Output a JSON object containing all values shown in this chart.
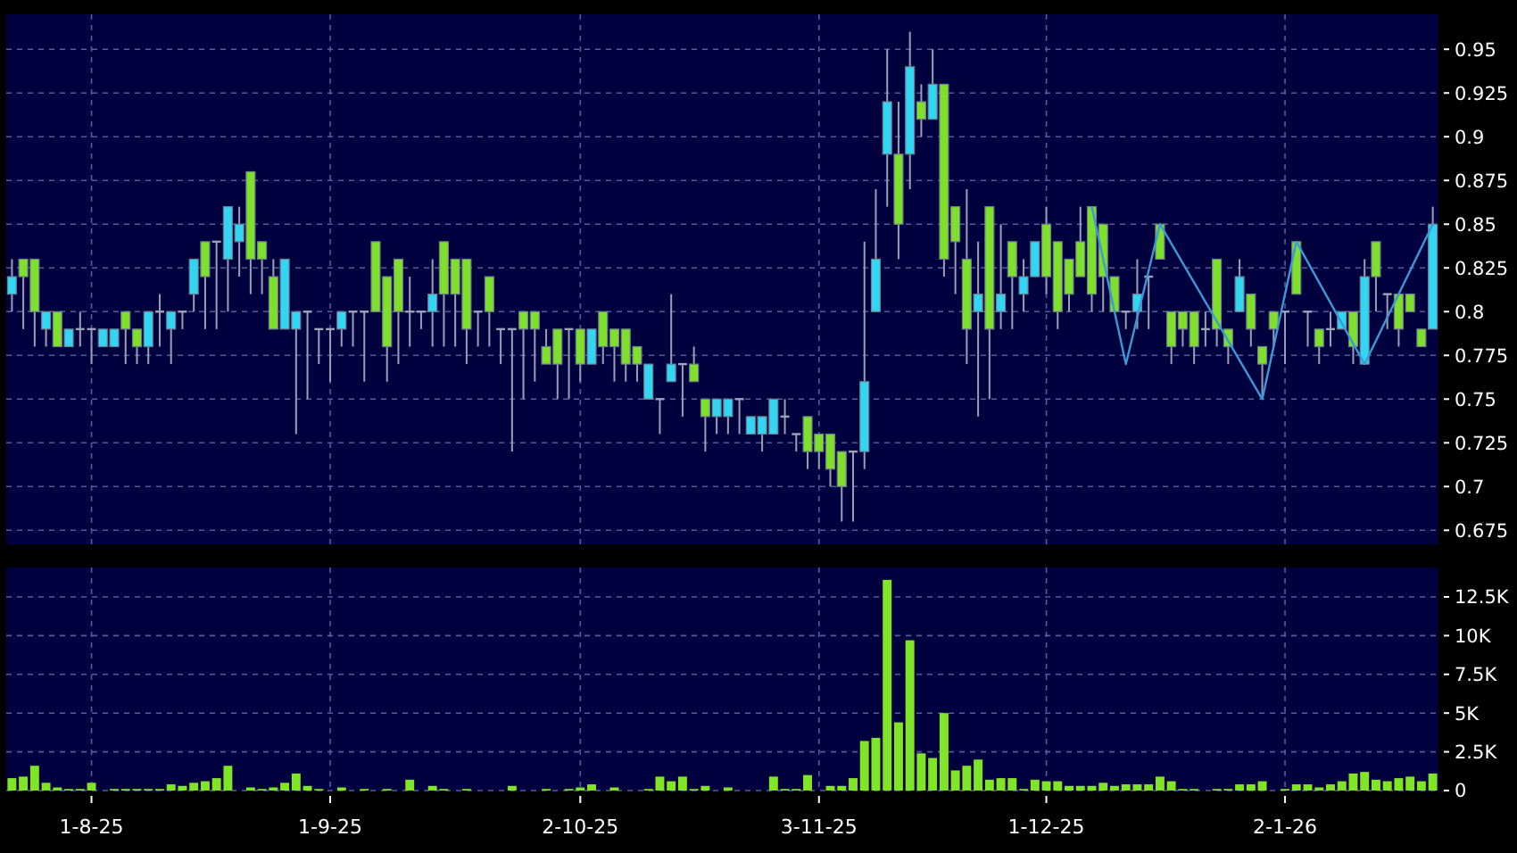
{
  "chart_data": [
    {
      "type": "candlestick",
      "tick_labels": "y",
      "grid": true,
      "categories": [
        null,
        null,
        null,
        null,
        null,
        null,
        null,
        null,
        null,
        null,
        null,
        null,
        null,
        null,
        null,
        null,
        null,
        null,
        null,
        null,
        null,
        null,
        null,
        null,
        null,
        null,
        null,
        null,
        null,
        null,
        null,
        null,
        null,
        null,
        null,
        null,
        null,
        null,
        null,
        null,
        null,
        null,
        null,
        null,
        null,
        null,
        null,
        null,
        null,
        null,
        null,
        null,
        null,
        null,
        null,
        null,
        null,
        null,
        null,
        null,
        null,
        null,
        null,
        null,
        null,
        null,
        null,
        null,
        null,
        null,
        null,
        null,
        null,
        null,
        null,
        null,
        null,
        null,
        null,
        null,
        null,
        null,
        null,
        null,
        null,
        null,
        null,
        null,
        null,
        null,
        null,
        null,
        null,
        null,
        null,
        null,
        null,
        null,
        null,
        null,
        null,
        null,
        null,
        null,
        null,
        null,
        null,
        null,
        null,
        null,
        null,
        null,
        null,
        null,
        null,
        null,
        null,
        null,
        null,
        null,
        null,
        null,
        null,
        null,
        null,
        null
      ],
      "ylim": [
        0.667,
        0.97
      ],
      "yticks": [
        0.675,
        0.7,
        0.725,
        0.75,
        0.775,
        0.8,
        0.825,
        0.85,
        0.875,
        0.9,
        0.925,
        0.95
      ],
      "ohlc": [
        [
          0.81,
          0.83,
          0.8,
          0.82
        ],
        [
          0.83,
          0.83,
          0.79,
          0.82
        ],
        [
          0.83,
          0.83,
          0.78,
          0.8
        ],
        [
          0.79,
          0.8,
          0.78,
          0.8
        ],
        [
          0.8,
          0.8,
          0.78,
          0.78
        ],
        [
          0.78,
          0.79,
          0.78,
          0.79
        ],
        [
          0.79,
          0.8,
          0.78,
          0.79
        ],
        [
          0.79,
          0.79,
          0.77,
          0.79
        ],
        [
          0.78,
          0.79,
          0.78,
          0.79
        ],
        [
          0.78,
          0.79,
          0.78,
          0.79
        ],
        [
          0.8,
          0.8,
          0.77,
          0.79
        ],
        [
          0.79,
          0.79,
          0.77,
          0.78
        ],
        [
          0.78,
          0.8,
          0.77,
          0.8
        ],
        [
          0.8,
          0.81,
          0.78,
          0.8
        ],
        [
          0.79,
          0.8,
          0.77,
          0.8
        ],
        [
          0.8,
          0.8,
          0.79,
          0.8
        ],
        [
          0.81,
          0.83,
          0.8,
          0.83
        ],
        [
          0.84,
          0.84,
          0.79,
          0.82
        ],
        [
          0.84,
          0.84,
          0.79,
          0.84
        ],
        [
          0.83,
          0.86,
          0.8,
          0.86
        ],
        [
          0.84,
          0.86,
          0.82,
          0.85
        ],
        [
          0.88,
          0.88,
          0.81,
          0.83
        ],
        [
          0.84,
          0.84,
          0.81,
          0.83
        ],
        [
          0.82,
          0.83,
          0.79,
          0.79
        ],
        [
          0.79,
          0.83,
          0.79,
          0.83
        ],
        [
          0.79,
          0.8,
          0.73,
          0.8
        ],
        [
          0.8,
          0.8,
          0.75,
          0.8
        ],
        [
          0.79,
          0.79,
          0.77,
          0.79
        ],
        [
          0.79,
          0.79,
          0.76,
          0.79
        ],
        [
          0.79,
          0.8,
          0.78,
          0.8
        ],
        [
          0.8,
          0.8,
          0.78,
          0.8
        ],
        [
          0.8,
          0.8,
          0.76,
          0.8
        ],
        [
          0.84,
          0.84,
          0.8,
          0.8
        ],
        [
          0.82,
          0.82,
          0.76,
          0.78
        ],
        [
          0.83,
          0.83,
          0.77,
          0.8
        ],
        [
          0.8,
          0.82,
          0.78,
          0.8
        ],
        [
          0.8,
          0.8,
          0.79,
          0.8
        ],
        [
          0.8,
          0.83,
          0.78,
          0.81
        ],
        [
          0.84,
          0.84,
          0.78,
          0.81
        ],
        [
          0.83,
          0.83,
          0.78,
          0.81
        ],
        [
          0.83,
          0.83,
          0.77,
          0.79
        ],
        [
          0.8,
          0.8,
          0.78,
          0.8
        ],
        [
          0.82,
          0.82,
          0.78,
          0.8
        ],
        [
          0.79,
          0.79,
          0.77,
          0.79
        ],
        [
          0.79,
          0.79,
          0.72,
          0.79
        ],
        [
          0.8,
          0.8,
          0.75,
          0.79
        ],
        [
          0.8,
          0.8,
          0.76,
          0.79
        ],
        [
          0.78,
          0.79,
          0.77,
          0.77
        ],
        [
          0.79,
          0.79,
          0.75,
          0.77
        ],
        [
          0.79,
          0.79,
          0.75,
          0.79
        ],
        [
          0.79,
          0.79,
          0.76,
          0.77
        ],
        [
          0.77,
          0.79,
          0.77,
          0.79
        ],
        [
          0.8,
          0.8,
          0.77,
          0.78
        ],
        [
          0.79,
          0.79,
          0.76,
          0.78
        ],
        [
          0.79,
          0.79,
          0.76,
          0.77
        ],
        [
          0.78,
          0.78,
          0.76,
          0.77
        ],
        [
          0.75,
          0.77,
          0.75,
          0.77
        ],
        [
          0.75,
          0.75,
          0.73,
          0.75
        ],
        [
          0.76,
          0.81,
          0.76,
          0.77
        ],
        [
          0.77,
          0.77,
          0.74,
          0.77
        ],
        [
          0.77,
          0.78,
          0.76,
          0.76
        ],
        [
          0.75,
          0.75,
          0.72,
          0.74
        ],
        [
          0.74,
          0.75,
          0.73,
          0.75
        ],
        [
          0.74,
          0.75,
          0.73,
          0.75
        ],
        [
          0.75,
          0.75,
          0.73,
          0.75
        ],
        [
          0.73,
          0.74,
          0.73,
          0.74
        ],
        [
          0.73,
          0.74,
          0.72,
          0.74
        ],
        [
          0.73,
          0.75,
          0.73,
          0.75
        ],
        [
          0.74,
          0.75,
          0.73,
          0.74
        ],
        [
          0.73,
          0.73,
          0.72,
          0.73
        ],
        [
          0.74,
          0.74,
          0.71,
          0.72
        ],
        [
          0.73,
          0.73,
          0.71,
          0.72
        ],
        [
          0.73,
          0.73,
          0.7,
          0.71
        ],
        [
          0.72,
          0.72,
          0.68,
          0.7
        ],
        [
          0.72,
          0.72,
          0.68,
          0.72
        ],
        [
          0.72,
          0.84,
          0.71,
          0.76
        ],
        [
          0.8,
          0.87,
          0.8,
          0.83
        ],
        [
          0.89,
          0.95,
          0.86,
          0.92
        ],
        [
          0.89,
          0.92,
          0.83,
          0.85
        ],
        [
          0.89,
          0.96,
          0.87,
          0.94
        ],
        [
          0.92,
          0.93,
          0.9,
          0.91
        ],
        [
          0.91,
          0.95,
          0.91,
          0.93
        ],
        [
          0.93,
          0.93,
          0.82,
          0.83
        ],
        [
          0.86,
          0.86,
          0.81,
          0.84
        ],
        [
          0.83,
          0.87,
          0.77,
          0.79
        ],
        [
          0.8,
          0.84,
          0.74,
          0.81
        ],
        [
          0.86,
          0.86,
          0.75,
          0.79
        ],
        [
          0.8,
          0.85,
          0.79,
          0.81
        ],
        [
          0.84,
          0.84,
          0.79,
          0.82
        ],
        [
          0.81,
          0.83,
          0.8,
          0.82
        ],
        [
          0.82,
          0.84,
          0.82,
          0.84
        ],
        [
          0.85,
          0.86,
          0.81,
          0.82
        ],
        [
          0.84,
          0.84,
          0.79,
          0.8
        ],
        [
          0.83,
          0.83,
          0.8,
          0.81
        ],
        [
          0.84,
          0.86,
          0.82,
          0.82
        ],
        [
          0.86,
          0.86,
          0.8,
          0.81
        ],
        [
          0.85,
          0.85,
          0.8,
          0.82
        ],
        [
          0.82,
          0.82,
          0.8,
          0.8
        ],
        [
          0.8,
          0.8,
          0.79,
          0.8
        ],
        [
          0.8,
          0.83,
          0.79,
          0.81
        ],
        [
          0.82,
          0.82,
          0.79,
          0.82
        ],
        [
          0.85,
          0.85,
          0.83,
          0.83
        ],
        [
          0.8,
          0.8,
          0.77,
          0.78
        ],
        [
          0.8,
          0.8,
          0.78,
          0.79
        ],
        [
          0.8,
          0.8,
          0.77,
          0.78
        ],
        [
          0.79,
          0.8,
          0.78,
          0.79
        ],
        [
          0.83,
          0.83,
          0.78,
          0.79
        ],
        [
          0.79,
          0.79,
          0.77,
          0.78
        ],
        [
          0.8,
          0.83,
          0.8,
          0.82
        ],
        [
          0.81,
          0.81,
          0.78,
          0.79
        ],
        [
          0.78,
          0.78,
          0.75,
          0.77
        ],
        [
          0.8,
          0.8,
          0.78,
          0.79
        ],
        [
          0.8,
          0.8,
          0.77,
          0.8
        ],
        [
          0.84,
          0.84,
          0.81,
          0.81
        ],
        [
          0.8,
          0.8,
          0.78,
          0.8
        ],
        [
          0.79,
          0.79,
          0.77,
          0.78
        ],
        [
          0.79,
          0.8,
          0.78,
          0.79
        ],
        [
          0.79,
          0.8,
          0.79,
          0.8
        ],
        [
          0.8,
          0.8,
          0.77,
          0.78
        ],
        [
          0.77,
          0.83,
          0.77,
          0.82
        ],
        [
          0.84,
          0.84,
          0.8,
          0.82
        ],
        [
          0.81,
          0.81,
          0.79,
          0.81
        ],
        [
          0.81,
          0.81,
          0.78,
          0.79
        ],
        [
          0.81,
          0.81,
          0.8,
          0.8
        ],
        [
          0.79,
          0.79,
          0.78,
          0.78
        ],
        [
          0.79,
          0.86,
          0.79,
          0.85
        ]
      ],
      "colors": [
        "#33d6f2",
        "#7ee02a",
        "#7ee02a",
        "#33d6f2",
        "#7ee02a",
        "#33d6f2",
        "#9da3b8",
        "#9da3b8",
        "#33d6f2",
        "#33d6f2",
        "#7ee02a",
        "#7ee02a",
        "#33d6f2",
        "#9da3b8",
        "#33d6f2",
        "#9da3b8",
        "#33d6f2",
        "#7ee02a",
        "#9da3b8",
        "#33d6f2",
        "#33d6f2",
        "#7ee02a",
        "#7ee02a",
        "#7ee02a",
        "#33d6f2",
        "#33d6f2",
        "#9da3b8",
        "#9da3b8",
        "#9da3b8",
        "#33d6f2",
        "#9da3b8",
        "#9da3b8",
        "#7ee02a",
        "#7ee02a",
        "#7ee02a",
        "#9da3b8",
        "#9da3b8",
        "#33d6f2",
        "#7ee02a",
        "#7ee02a",
        "#7ee02a",
        "#9da3b8",
        "#7ee02a",
        "#9da3b8",
        "#9da3b8",
        "#7ee02a",
        "#7ee02a",
        "#7ee02a",
        "#7ee02a",
        "#9da3b8",
        "#7ee02a",
        "#33d6f2",
        "#7ee02a",
        "#7ee02a",
        "#7ee02a",
        "#7ee02a",
        "#33d6f2",
        "#9da3b8",
        "#33d6f2",
        "#9da3b8",
        "#7ee02a",
        "#7ee02a",
        "#33d6f2",
        "#33d6f2",
        "#9da3b8",
        "#33d6f2",
        "#33d6f2",
        "#33d6f2",
        "#9da3b8",
        "#9da3b8",
        "#7ee02a",
        "#7ee02a",
        "#7ee02a",
        "#7ee02a",
        "#9da3b8",
        "#33d6f2",
        "#33d6f2",
        "#33d6f2",
        "#7ee02a",
        "#33d6f2",
        "#7ee02a",
        "#33d6f2",
        "#7ee02a",
        "#7ee02a",
        "#7ee02a",
        "#33d6f2",
        "#7ee02a",
        "#33d6f2",
        "#7ee02a",
        "#33d6f2",
        "#33d6f2",
        "#7ee02a",
        "#7ee02a",
        "#7ee02a",
        "#7ee02a",
        "#7ee02a",
        "#7ee02a",
        "#7ee02a",
        "#9da3b8",
        "#33d6f2",
        "#9da3b8",
        "#7ee02a",
        "#7ee02a",
        "#7ee02a",
        "#7ee02a",
        "#9da3b8",
        "#7ee02a",
        "#7ee02a",
        "#33d6f2",
        "#7ee02a",
        "#7ee02a",
        "#7ee02a",
        "#9da3b8",
        "#7ee02a",
        "#9da3b8",
        "#7ee02a",
        "#9da3b8",
        "#33d6f2",
        "#7ee02a",
        "#33d6f2",
        "#7ee02a",
        "#9da3b8",
        "#7ee02a",
        "#7ee02a",
        "#7ee02a",
        "#33d6f2"
      ],
      "series": [
        {
          "type": "line",
          "color": "#3a9ad9",
          "values": [
            null,
            null,
            null,
            null,
            null,
            null,
            null,
            null,
            null,
            null,
            null,
            null,
            null,
            null,
            null,
            null,
            null,
            null,
            null,
            null,
            null,
            null,
            null,
            null,
            null,
            null,
            null,
            null,
            null,
            null,
            null,
            null,
            null,
            null,
            null,
            null,
            null,
            null,
            null,
            null,
            null,
            null,
            null,
            null,
            null,
            null,
            null,
            null,
            null,
            null,
            null,
            null,
            null,
            null,
            null,
            null,
            null,
            null,
            null,
            null,
            null,
            null,
            null,
            null,
            null,
            null,
            null,
            null,
            null,
            null,
            null,
            null,
            null,
            null,
            null,
            null,
            null,
            null,
            null,
            null,
            null,
            null,
            null,
            null,
            null,
            null,
            null,
            null,
            null,
            null,
            null,
            null,
            null,
            null,
            null,
            0.86,
            null,
            null,
            0.77,
            null,
            null,
            0.85,
            null,
            null,
            null,
            null,
            null,
            null,
            null,
            null,
            0.75,
            null,
            null,
            0.84,
            null,
            null,
            null,
            null,
            null,
            0.77,
            null,
            null,
            null,
            null,
            null,
            0.85
          ]
        }
      ]
    },
    {
      "type": "bar",
      "grid": true,
      "color": "#80e526",
      "categories": [
        null,
        null,
        null,
        null,
        null,
        null,
        null,
        "1-8-25",
        null,
        null,
        null,
        null,
        null,
        null,
        null,
        null,
        null,
        null,
        null,
        null,
        null,
        null,
        null,
        null,
        null,
        null,
        null,
        null,
        "1-9-25",
        null,
        null,
        null,
        null,
        null,
        null,
        null,
        null,
        null,
        null,
        null,
        null,
        null,
        null,
        null,
        null,
        null,
        null,
        null,
        null,
        null,
        "2-10-25",
        null,
        null,
        null,
        null,
        null,
        null,
        null,
        null,
        null,
        null,
        null,
        null,
        null,
        null,
        null,
        null,
        null,
        null,
        null,
        null,
        "3-11-25",
        null,
        null,
        null,
        null,
        null,
        null,
        null,
        null,
        null,
        null,
        null,
        null,
        null,
        null,
        null,
        null,
        null,
        null,
        null,
        "1-12-25",
        null,
        null,
        null,
        null,
        null,
        null,
        null,
        null,
        null,
        null,
        null,
        null,
        null,
        null,
        null,
        null,
        null,
        null,
        null,
        null,
        "2-1-26",
        null,
        null,
        null,
        null,
        null,
        null,
        null,
        null,
        null,
        null,
        null,
        null,
        null
      ],
      "ylim": [
        0,
        14400
      ],
      "yticks": [
        0,
        {
          "value": 2500,
          "label": "2.5K"
        },
        {
          "value": 5000,
          "label": "5K"
        },
        {
          "value": 7500,
          "label": "7.5K"
        },
        {
          "value": 10000,
          "label": "10K"
        },
        {
          "value": 12500,
          "label": "12.5K"
        }
      ],
      "values": [
        800,
        900,
        1600,
        500,
        200,
        100,
        100,
        500,
        0,
        100,
        100,
        100,
        100,
        100,
        400,
        300,
        500,
        600,
        800,
        1600,
        0,
        200,
        100,
        200,
        500,
        1100,
        300,
        100,
        0,
        200,
        0,
        100,
        0,
        100,
        0,
        700,
        0,
        300,
        100,
        0,
        100,
        0,
        0,
        0,
        300,
        0,
        0,
        100,
        0,
        100,
        200,
        400,
        0,
        200,
        0,
        0,
        100,
        900,
        600,
        900,
        100,
        300,
        0,
        200,
        0,
        0,
        0,
        900,
        100,
        100,
        1000,
        0,
        300,
        300,
        800,
        3200,
        3400,
        13600,
        4400,
        9700,
        2400,
        2100,
        5000,
        1300,
        1600,
        2000,
        700,
        800,
        800,
        100,
        700,
        600,
        600,
        300,
        300,
        300,
        500,
        300,
        400,
        400,
        400,
        900,
        600,
        100,
        100,
        0,
        100,
        100,
        400,
        400,
        600,
        0,
        100,
        400,
        400,
        200,
        400,
        600,
        1100,
        1200,
        700,
        600,
        800,
        900,
        600,
        1100
      ]
    }
  ]
}
